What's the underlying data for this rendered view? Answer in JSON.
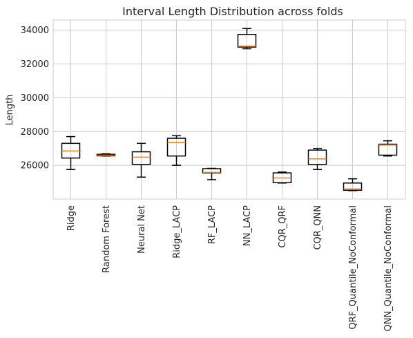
{
  "chart_data": {
    "type": "box",
    "title": "Interval Length Distribution across folds",
    "xlabel": "",
    "ylabel": "Length",
    "ylim": [
      24000,
      34600
    ],
    "yticks": [
      26000,
      28000,
      30000,
      32000,
      34000
    ],
    "ytick_labels": [
      "26000",
      "28000",
      "30000",
      "32000",
      "34000"
    ],
    "grid": true,
    "colors": {
      "box": "#000000",
      "median": "#ff7f0e",
      "grid": "#cccccc",
      "text": "#262626"
    },
    "categories": [
      "Ridge",
      "Random Forest",
      "Neural Net",
      "Ridge_LACP",
      "RF_LACP",
      "NN_LACP",
      "CQR_QRF",
      "CQR_QNN",
      "QRF_Quantile_NoConformal",
      "QNN_Quantile_NoConformal"
    ],
    "boxes": [
      {
        "whisker_low": 25750,
        "q1": 26430,
        "median": 26850,
        "q3": 27300,
        "whisker_high": 27700
      },
      {
        "whisker_low": 26550,
        "q1": 26560,
        "median": 26600,
        "q3": 26650,
        "whisker_high": 26680
      },
      {
        "whisker_low": 25300,
        "q1": 26050,
        "median": 26480,
        "q3": 26800,
        "whisker_high": 27300
      },
      {
        "whisker_low": 26000,
        "q1": 26550,
        "median": 27350,
        "q3": 27600,
        "whisker_high": 27750
      },
      {
        "whisker_low": 25150,
        "q1": 25550,
        "median": 25580,
        "q3": 25800,
        "whisker_high": 25820
      },
      {
        "whisker_low": 32900,
        "q1": 33000,
        "median": 33050,
        "q3": 33750,
        "whisker_high": 34100
      },
      {
        "whisker_low": 24950,
        "q1": 24970,
        "median": 25250,
        "q3": 25550,
        "whisker_high": 25600
      },
      {
        "whisker_low": 25750,
        "q1": 26050,
        "median": 26380,
        "q3": 26900,
        "whisker_high": 27000
      },
      {
        "whisker_low": 24500,
        "q1": 24520,
        "median": 24600,
        "q3": 24950,
        "whisker_high": 25200
      },
      {
        "whisker_low": 26550,
        "q1": 26600,
        "median": 27200,
        "q3": 27250,
        "whisker_high": 27450
      }
    ]
  }
}
